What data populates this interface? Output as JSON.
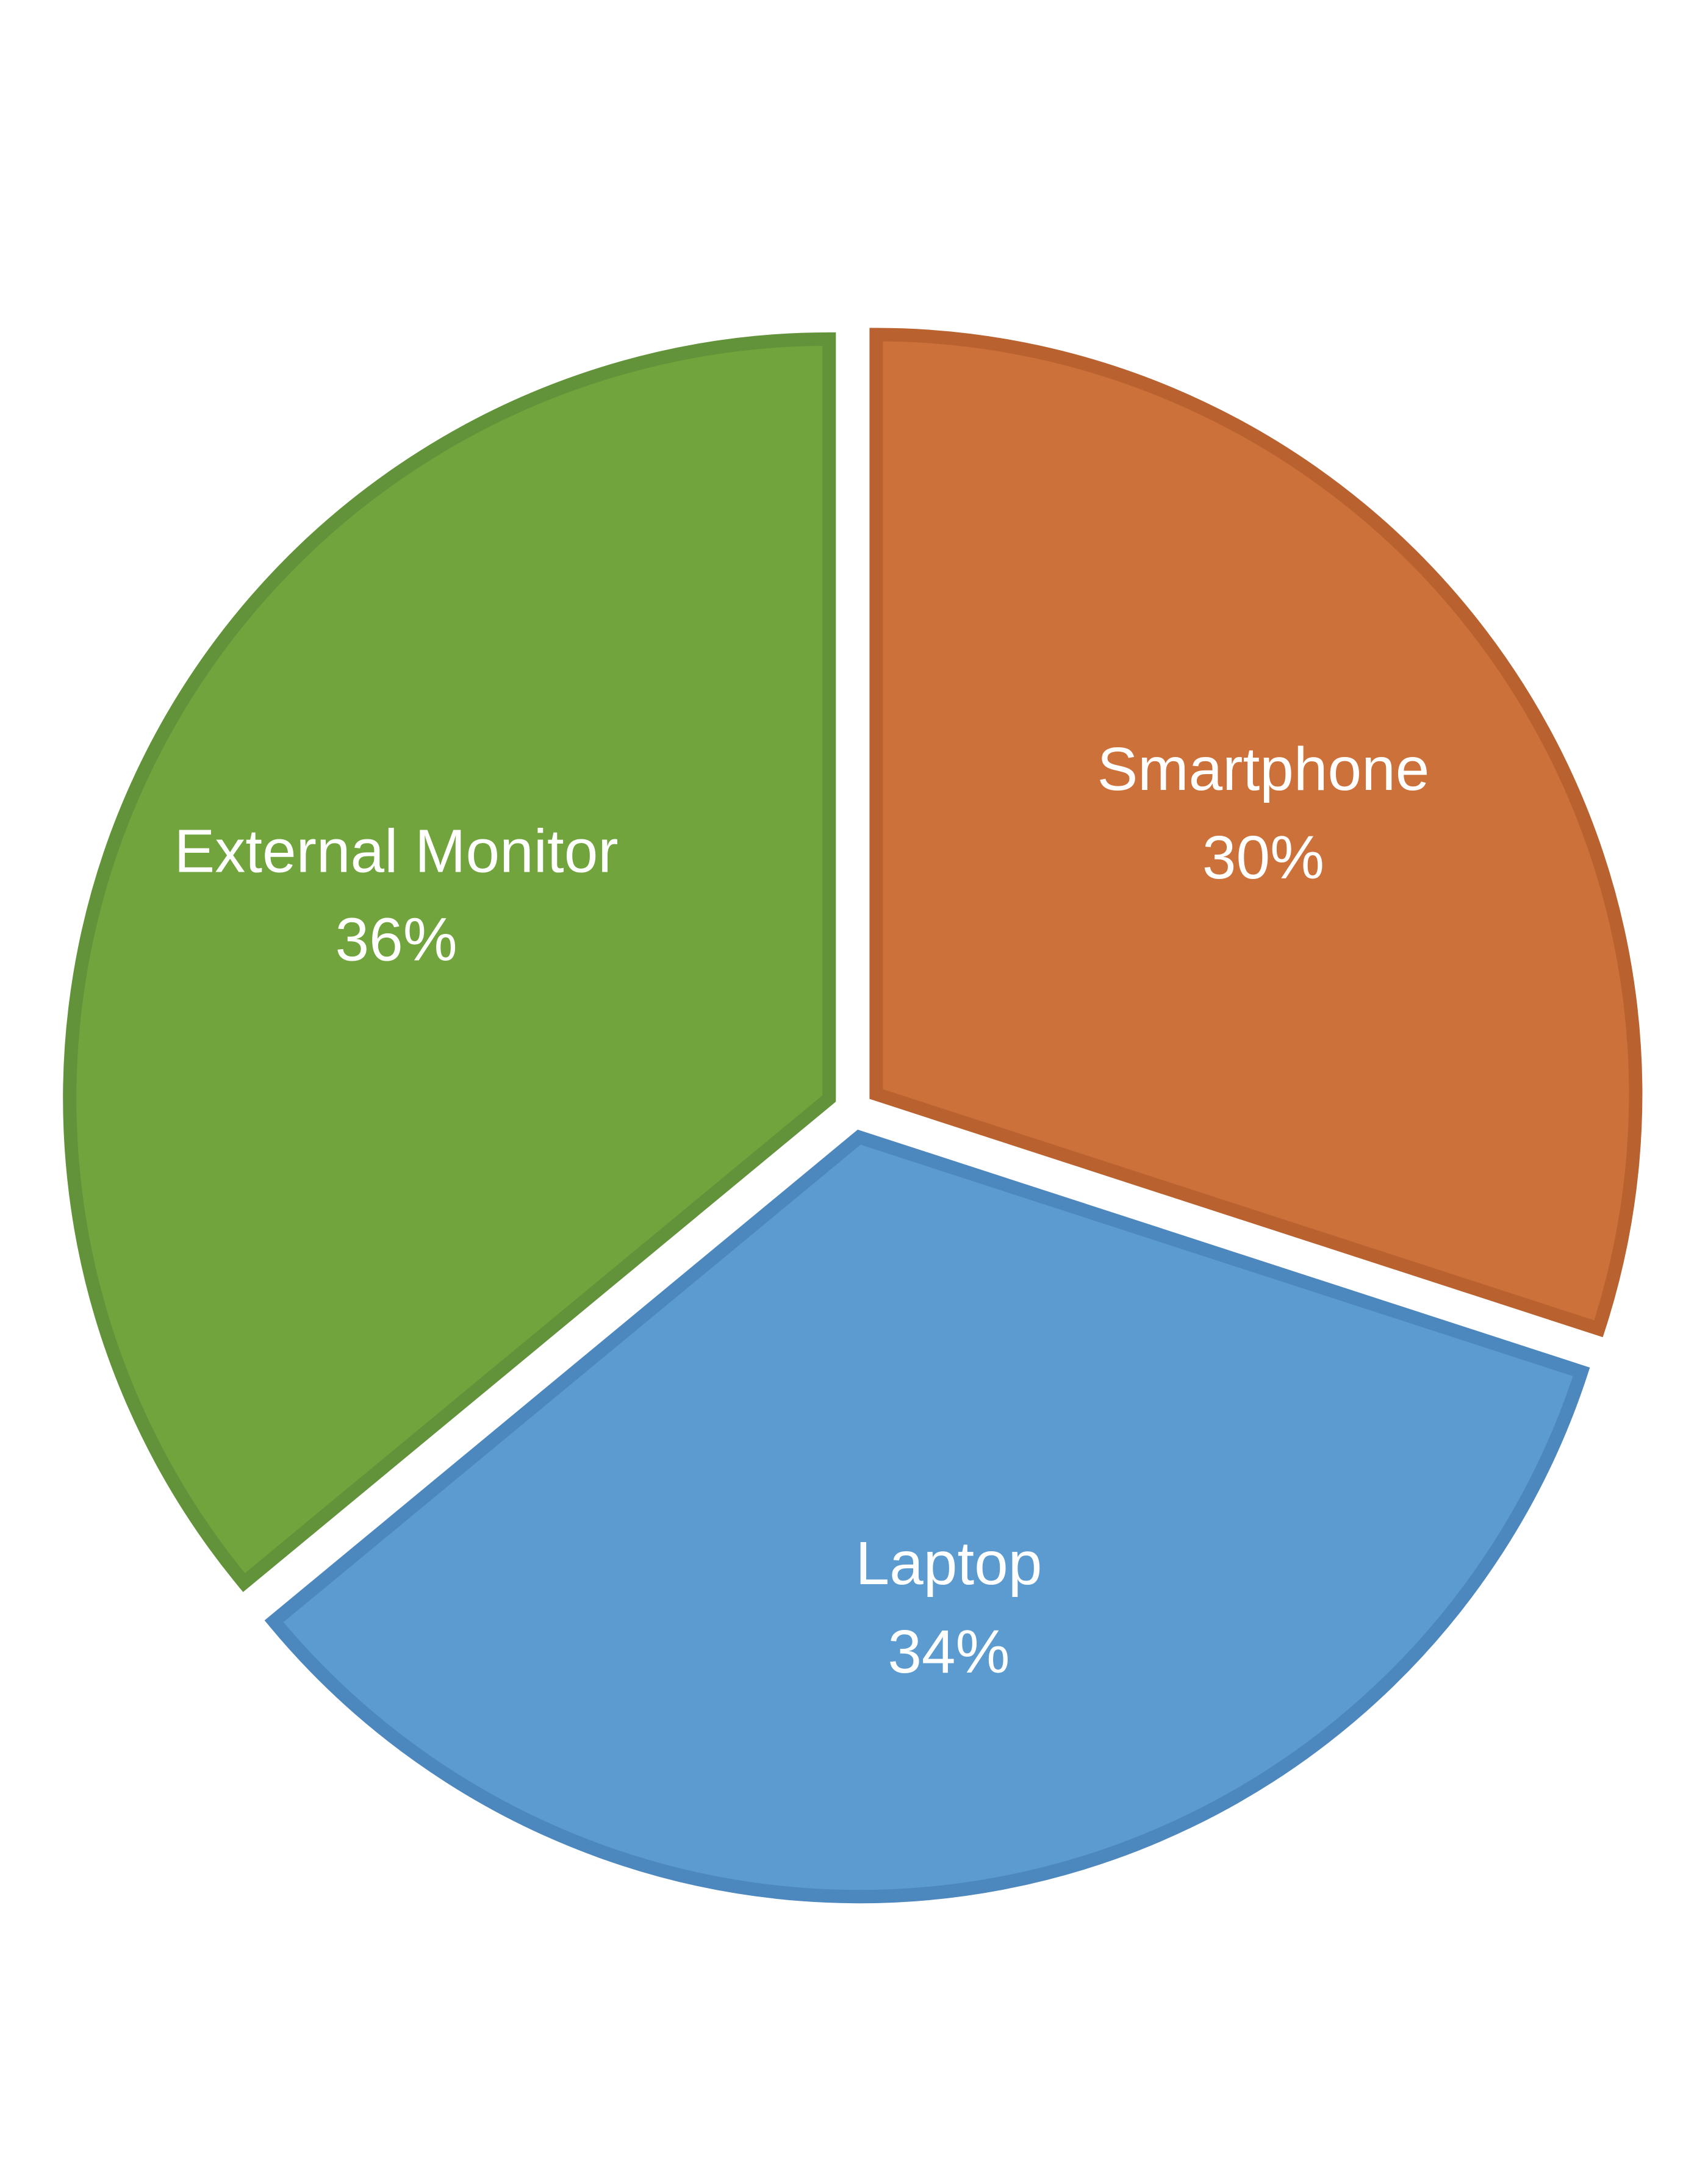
{
  "chart_data": {
    "type": "pie",
    "title": "",
    "categories": [
      "Smartphone",
      "Laptop",
      "External Monitor"
    ],
    "values": [
      30,
      34,
      36
    ],
    "value_labels": [
      "30%",
      "34%",
      "36%"
    ],
    "colors": [
      "#CD713B",
      "#5B9BD0",
      "#71A43C"
    ],
    "border_colors": [
      "#B9622F",
      "#4C87BD",
      "#62933A"
    ],
    "exploded": true,
    "start_angle_deg": 0,
    "direction": "clockwise",
    "legend": "none",
    "data_labels": "category and percent, inside slices"
  }
}
